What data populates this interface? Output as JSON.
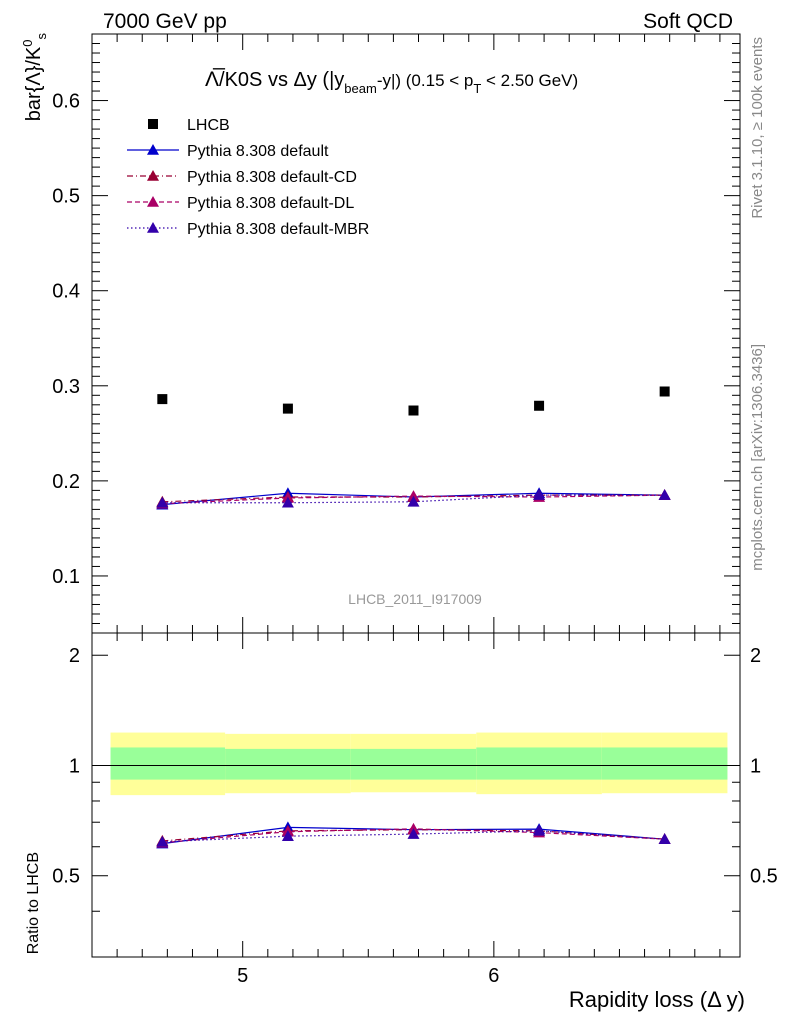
{
  "header": {
    "left": "7000 GeV pp",
    "right": "Soft QCD"
  },
  "side_labels": {
    "rivet": "Rivet 3.1.10, ≥ 100k events",
    "mcplots": "mcplots.cern.ch [arXiv:1306.3436]"
  },
  "chart_data": {
    "type": "scatter",
    "title": "Λ̅/K0S vs Δy (|y_beam-y|) (0.15 < p_T < 2.50 GeV)",
    "title_parts": {
      "main": "/K0S vs Δy (|y",
      "sub1": "beam",
      "mid": "-y|) (0.15 < p",
      "sub2": "T",
      "end": " < 2.50 GeV)"
    },
    "watermark": "LHCB_2011_I917009",
    "xlabel": "Rapidity loss (Δ y)",
    "ylabel_main": "bar{Λ}/K⁰s",
    "ylabel_ratio": "Ratio to LHCB",
    "xlim": [
      4.4,
      6.98
    ],
    "ylim_main": [
      0.04,
      0.67
    ],
    "ylim_ratio": [
      0.3,
      2.3
    ],
    "x_ticks": [
      "5",
      "6"
    ],
    "y_ticks_main": [
      "0.1",
      "0.2",
      "0.3",
      "0.4",
      "0.5",
      "0.6"
    ],
    "y_ticks_ratio": [
      "0.5",
      "1",
      "2"
    ],
    "legend_position": "top-left",
    "x": [
      4.68,
      5.18,
      5.68,
      6.18,
      6.68
    ],
    "bin_edges": [
      4.43,
      4.93,
      5.43,
      5.93,
      6.43,
      6.93
    ],
    "series": [
      {
        "name": "LHCB",
        "values": [
          0.286,
          0.276,
          0.274,
          0.279,
          0.294
        ],
        "color": "#000000",
        "marker": "square",
        "style": "none"
      },
      {
        "name": "Pythia 8.308 default",
        "values": [
          0.175,
          0.187,
          0.183,
          0.187,
          0.185
        ],
        "color": "#0000cc",
        "marker": "triangle",
        "style": "solid"
      },
      {
        "name": "Pythia 8.308 default-CD",
        "values": [
          0.178,
          0.183,
          0.183,
          0.185,
          0.185
        ],
        "color": "#990033",
        "marker": "triangle",
        "style": "dashdot"
      },
      {
        "name": "Pythia 8.308 default-DL",
        "values": [
          0.176,
          0.182,
          0.184,
          0.183,
          0.185
        ],
        "color": "#aa0066",
        "marker": "triangle",
        "style": "dashed"
      },
      {
        "name": "Pythia 8.308 default-MBR",
        "values": [
          0.177,
          0.177,
          0.178,
          0.185,
          0.185
        ],
        "color": "#3300aa",
        "marker": "triangle",
        "style": "dotted"
      }
    ],
    "ratio_band": {
      "inner_low": [
        0.915,
        0.915,
        0.915,
        0.915,
        0.915
      ],
      "inner_high": [
        1.12,
        1.11,
        1.11,
        1.12,
        1.12
      ],
      "outer_low": [
        0.83,
        0.84,
        0.845,
        0.835,
        0.84
      ],
      "outer_high": [
        1.23,
        1.22,
        1.22,
        1.23,
        1.23
      ],
      "inner_color": "#99ff99",
      "outer_color": "#ffff99"
    }
  }
}
